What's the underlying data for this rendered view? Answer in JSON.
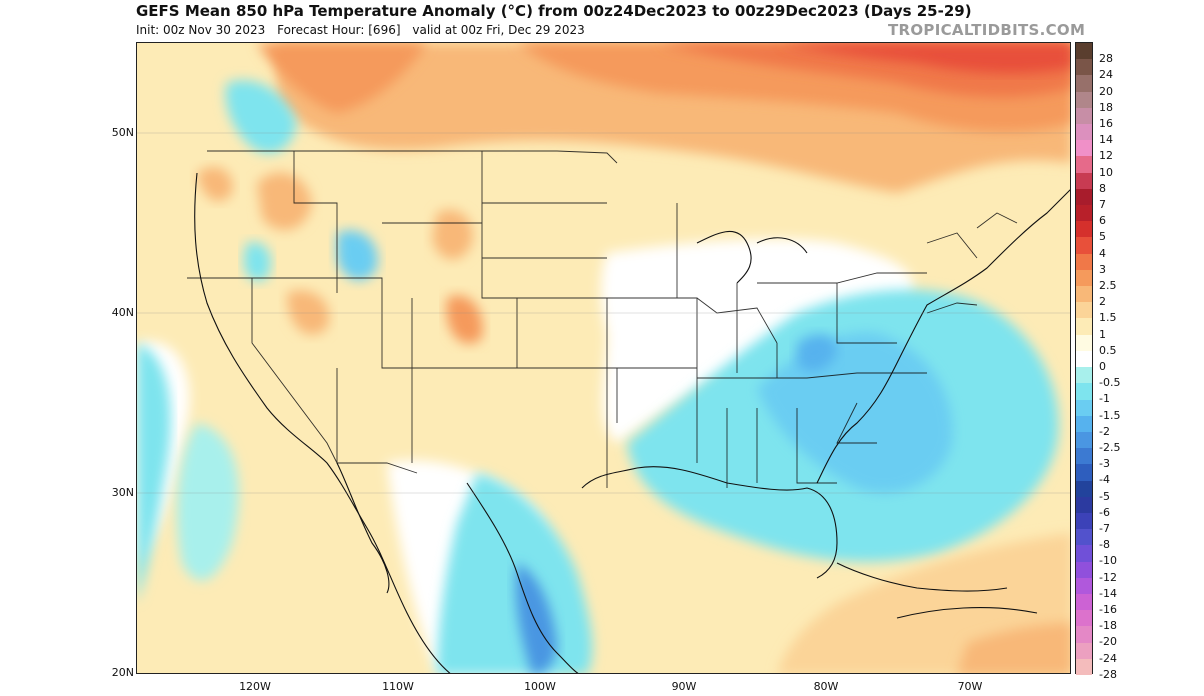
{
  "header": {
    "title": "GEFS Mean 850 hPa Temperature Anomaly (°C) from 00z24Dec2023 to 00z29Dec2023 (Days 25-29)",
    "init": "Init: 00z Nov 30 2023",
    "forecast_hour": "Forecast Hour: [696]",
    "valid": "valid at 00z Fri, Dec 29 2023",
    "brand": "TROPICALTIDBITS.COM"
  },
  "axes": {
    "lat_labels": [
      "50N",
      "40N",
      "30N",
      "20N"
    ],
    "lon_labels": [
      "120W",
      "110W",
      "100W",
      "90W",
      "80W",
      "70W"
    ]
  },
  "colorbar": {
    "levels": [
      {
        "label": "28",
        "color": "#5a3e2e"
      },
      {
        "label": "24",
        "color": "#7a5548"
      },
      {
        "label": "20",
        "color": "#97706a"
      },
      {
        "label": "18",
        "color": "#b0868a"
      },
      {
        "label": "16",
        "color": "#c78ea6"
      },
      {
        "label": "14",
        "color": "#dc90be"
      },
      {
        "label": "12",
        "color": "#f090c8"
      },
      {
        "label": "10",
        "color": "#e66a8a"
      },
      {
        "label": "8",
        "color": "#c83b52"
      },
      {
        "label": "7",
        "color": "#a81c2c"
      },
      {
        "label": "6",
        "color": "#b8202a"
      },
      {
        "label": "5",
        "color": "#d5302c"
      },
      {
        "label": "4",
        "color": "#e8503a"
      },
      {
        "label": "3",
        "color": "#f07848"
      },
      {
        "label": "2.5",
        "color": "#f59a5c"
      },
      {
        "label": "2",
        "color": "#f8b878"
      },
      {
        "label": "1.5",
        "color": "#fbd498"
      },
      {
        "label": "1",
        "color": "#fdebb6"
      },
      {
        "label": "0.5",
        "color": "#fffbe2"
      },
      {
        "label": "0",
        "color": "#ffffff"
      },
      {
        "label": "-0.5",
        "color": "#a8f0ec"
      },
      {
        "label": "-1",
        "color": "#7ee4ee"
      },
      {
        "label": "-1.5",
        "color": "#6acdf2"
      },
      {
        "label": "-2",
        "color": "#56b2ee"
      },
      {
        "label": "-2.5",
        "color": "#4a96e2"
      },
      {
        "label": "-3",
        "color": "#3c7ad2"
      },
      {
        "label": "-4",
        "color": "#2e5ebe"
      },
      {
        "label": "-5",
        "color": "#22439c"
      },
      {
        "label": "-6",
        "color": "#2c3aa0"
      },
      {
        "label": "-7",
        "color": "#3c42b8"
      },
      {
        "label": "-8",
        "color": "#5252cc"
      },
      {
        "label": "-10",
        "color": "#7050d8"
      },
      {
        "label": "-12",
        "color": "#9050dc"
      },
      {
        "label": "-14",
        "color": "#b058dc"
      },
      {
        "label": "-16",
        "color": "#cc62d4"
      },
      {
        "label": "-18",
        "color": "#dc72cc"
      },
      {
        "label": "-20",
        "color": "#e488c6"
      },
      {
        "label": "-24",
        "color": "#eca0c0"
      },
      {
        "label": "-28",
        "color": "#f4bcbc"
      }
    ]
  }
}
